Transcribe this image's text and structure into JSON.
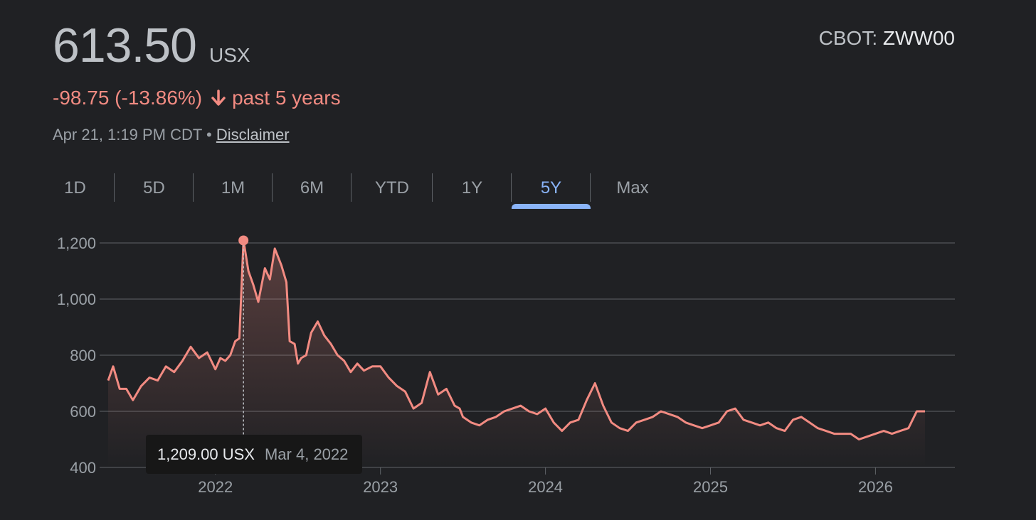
{
  "header": {
    "price": "613.50",
    "currency": "USX",
    "exchange_prefix": "CBOT:",
    "symbol": "ZWW00",
    "change": "-98.75 (-13.86%)",
    "period": "past 5 years",
    "timestamp": "Apr 21, 1:19 PM CDT",
    "separator": "•",
    "disclaimer": "Disclaimer"
  },
  "tabs": [
    {
      "label": "1D",
      "active": false
    },
    {
      "label": "5D",
      "active": false
    },
    {
      "label": "1M",
      "active": false
    },
    {
      "label": "6M",
      "active": false
    },
    {
      "label": "YTD",
      "active": false
    },
    {
      "label": "1Y",
      "active": false
    },
    {
      "label": "5Y",
      "active": true
    },
    {
      "label": "Max",
      "active": false
    }
  ],
  "colors": {
    "line": "#f28b82",
    "grid": "#5f6368",
    "active_tab": "#8ab4f8",
    "text_muted": "#9aa0a6",
    "background": "#202124"
  },
  "tooltip": {
    "value": "1,209.00 USX",
    "date": "Mar 4, 2022"
  },
  "chart_data": {
    "type": "area",
    "x_unit": "year",
    "xlim": [
      2021.35,
      2026.3
    ],
    "ylim": [
      400,
      1200
    ],
    "yticks": [
      400,
      600,
      800,
      1000,
      1200
    ],
    "ytick_labels": [
      "400",
      "600",
      "800",
      "1,000",
      "1,200"
    ],
    "xticks": [
      2022,
      2023,
      2024,
      2025,
      2026
    ],
    "xtick_labels": [
      "2022",
      "2023",
      "2024",
      "2025",
      "2026"
    ],
    "grid": true,
    "highlight": {
      "x": 2022.17,
      "y": 1209
    },
    "series": [
      {
        "x": [
          2021.35,
          2021.38,
          2021.42,
          2021.46,
          2021.5,
          2021.55,
          2021.6,
          2021.65,
          2021.7,
          2021.75,
          2021.8,
          2021.85,
          2021.9,
          2021.95,
          2022.0,
          2022.03,
          2022.06,
          2022.09,
          2022.12,
          2022.145,
          2022.17,
          2022.2,
          2022.23,
          2022.26,
          2022.3,
          2022.33,
          2022.36,
          2022.4,
          2022.43,
          2022.45,
          2022.48,
          2022.5,
          2022.52,
          2022.55,
          2022.58,
          2022.62,
          2022.66,
          2022.7,
          2022.74,
          2022.78,
          2022.82,
          2022.86,
          2022.9,
          2022.95,
          2023.0,
          2023.05,
          2023.1,
          2023.15,
          2023.2,
          2023.25,
          2023.3,
          2023.35,
          2023.4,
          2023.45,
          2023.48,
          2023.5,
          2023.55,
          2023.6,
          2023.65,
          2023.7,
          2023.75,
          2023.8,
          2023.85,
          2023.9,
          2023.95,
          2024.0,
          2024.05,
          2024.1,
          2024.15,
          2024.2,
          2024.25,
          2024.3,
          2024.35,
          2024.4,
          2024.45,
          2024.5,
          2024.55,
          2024.6,
          2024.65,
          2024.7,
          2024.75,
          2024.8,
          2024.85,
          2024.9,
          2024.95,
          2025.0,
          2025.05,
          2025.1,
          2025.15,
          2025.2,
          2025.25,
          2025.3,
          2025.35,
          2025.4,
          2025.45,
          2025.5,
          2025.55,
          2025.6,
          2025.65,
          2025.7,
          2025.75,
          2025.8,
          2025.85,
          2025.9,
          2025.95,
          2026.0,
          2026.05,
          2026.1,
          2026.15,
          2026.2,
          2026.25,
          2026.28,
          2026.3
        ],
        "y": [
          710,
          760,
          680,
          680,
          640,
          690,
          720,
          710,
          760,
          740,
          780,
          830,
          790,
          810,
          750,
          790,
          780,
          800,
          850,
          860,
          1209,
          1100,
          1050,
          990,
          1110,
          1070,
          1180,
          1120,
          1060,
          850,
          840,
          770,
          790,
          800,
          880,
          920,
          870,
          840,
          800,
          780,
          740,
          770,
          745,
          760,
          760,
          720,
          690,
          670,
          610,
          630,
          740,
          660,
          680,
          620,
          610,
          580,
          560,
          550,
          570,
          580,
          600,
          610,
          620,
          600,
          590,
          610,
          560,
          530,
          560,
          570,
          640,
          700,
          620,
          560,
          540,
          530,
          560,
          570,
          580,
          600,
          590,
          580,
          560,
          550,
          540,
          550,
          560,
          600,
          610,
          570,
          560,
          550,
          560,
          540,
          530,
          570,
          580,
          560,
          540,
          530,
          520,
          520,
          520,
          500,
          510,
          520,
          530,
          520,
          530,
          540,
          600,
          600,
          600
        ]
      }
    ]
  }
}
